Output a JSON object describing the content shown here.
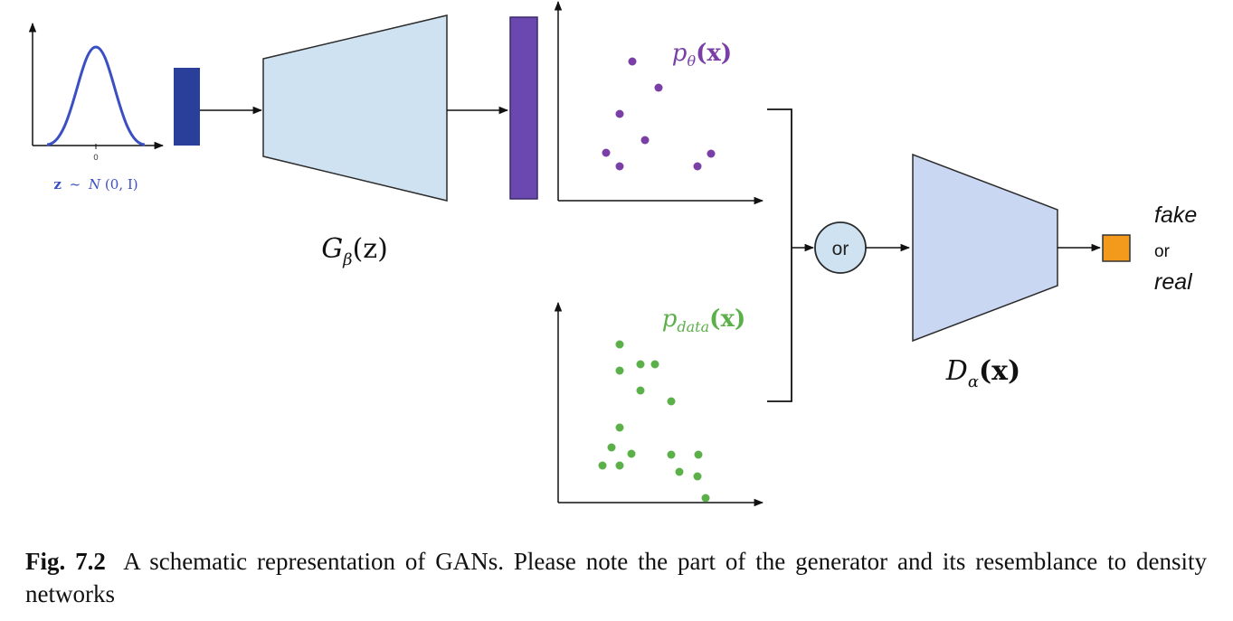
{
  "diagram": {
    "prior_label": {
      "z": "z",
      "sim": "~",
      "N": "N",
      "args": "(0, I)"
    },
    "prior_tick": "0",
    "generator_label": {
      "G": "G",
      "sub": "β",
      "arg": "(z)"
    },
    "discriminator_label": {
      "D": "D",
      "sub": "α",
      "arg": "(x)"
    },
    "model_dist_label": {
      "p": "p",
      "sub": "θ",
      "arg": "(x)"
    },
    "data_dist_label": {
      "p": "p",
      "sub": "data",
      "arg": "(x)"
    },
    "or_node": "or",
    "output": {
      "fake": "fake",
      "or": "or",
      "real": "real"
    },
    "colors": {
      "prior_curve": "#3a4fc4",
      "latent_block": "#2a3f9a",
      "generator": "#cfe2f1",
      "generated_block": "#6b47b0",
      "model_points": "#7a3fa6",
      "data_points": "#5cb04a",
      "discriminator": "#c9d7f2",
      "output_block": "#f39a1c"
    }
  },
  "caption": {
    "label": "Fig. 7.2",
    "text": "A schematic representation of GANs. Please note the part of the generator and its resemblance to density networks"
  }
}
